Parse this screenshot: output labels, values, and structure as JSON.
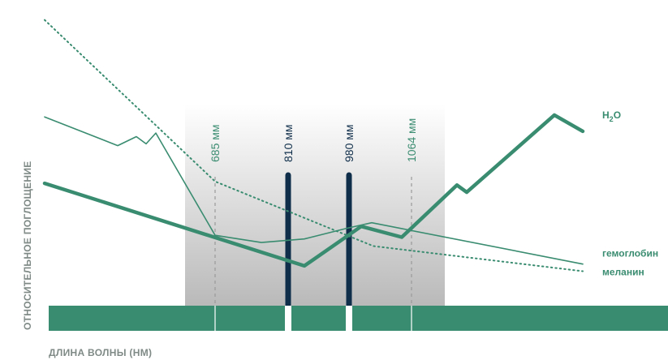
{
  "chart_data": {
    "type": "line",
    "xlabel": "ДЛИНА ВОЛНЫ (НМ)",
    "ylabel": "ОТНОСИТЕЛЬНОЕ ПОГЛОЩЕНИЕ",
    "wavelengths": [
      {
        "label": "685 мм",
        "nm": 685,
        "style": "dashed",
        "color": "#3a8c70"
      },
      {
        "label": "810 мм",
        "nm": 810,
        "style": "bar",
        "color": "#0f2e4a"
      },
      {
        "label": "980 мм",
        "nm": 980,
        "style": "bar",
        "color": "#0f2e4a"
      },
      {
        "label": "1064 мм",
        "nm": 1064,
        "style": "dashed",
        "color": "#3a8c70"
      }
    ],
    "series": [
      {
        "name": "H2O",
        "label": "H",
        "label_sub": "2",
        "label_tail": "O",
        "color": "#3a8c70",
        "style": "thick",
        "points": [
          [
            55,
            0.56
          ],
          [
            375,
            0.1
          ],
          [
            445,
            0.32
          ],
          [
            495,
            0.26
          ],
          [
            563,
            0.55
          ],
          [
            575,
            0.51
          ],
          [
            683,
            0.94
          ],
          [
            718,
            0.85
          ]
        ]
      },
      {
        "name": "гемоглобин",
        "label": "гемоглобин",
        "color": "#3a8c70",
        "style": "thin",
        "points": [
          [
            55,
            0.93
          ],
          [
            145,
            0.77
          ],
          [
            168,
            0.82
          ],
          [
            180,
            0.78
          ],
          [
            192,
            0.84
          ],
          [
            265,
            0.27
          ],
          [
            322,
            0.23
          ],
          [
            375,
            0.25
          ],
          [
            428,
            0.31
          ],
          [
            458,
            0.34
          ],
          [
            718,
            0.11
          ]
        ]
      },
      {
        "name": "меланин",
        "label": "меланин",
        "color": "#3a8c70",
        "style": "dotted",
        "points": [
          [
            55,
            1.47
          ],
          [
            265,
            0.57
          ],
          [
            460,
            0.21
          ],
          [
            718,
            0.07
          ]
        ]
      }
    ],
    "ylim": [
      0,
      1.5
    ],
    "grid": false,
    "legend": "right, at line ends"
  }
}
